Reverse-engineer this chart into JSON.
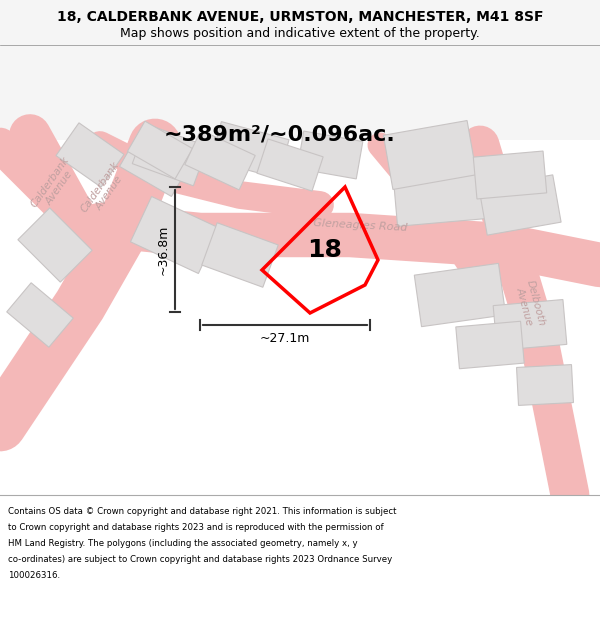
{
  "title_line1": "18, CALDERBANK AVENUE, URMSTON, MANCHESTER, M41 8SF",
  "title_line2": "Map shows position and indicative extent of the property.",
  "area_text": "~389m²/~0.096ac.",
  "width_label": "~27.1m",
  "height_label": "~36.8m",
  "number_label": "18",
  "footer_text": "Contains OS data © Crown copyright and database right 2021. This information is subject to Crown copyright and database rights 2023 and is reproduced with the permission of HM Land Registry. The polygons (including the associated geometry, namely x, y co-ordinates) are subject to Crown copyright and database rights 2023 Ordnance Survey 100026316.",
  "bg_color": "#f5f5f5",
  "map_bg": "#f0eeee",
  "road_color": "#f4b8b8",
  "building_color": "#e0dede",
  "building_edge": "#c8c4c4",
  "property_color": "#ff0000",
  "text_color": "#000000",
  "road_text_color": "#c0a0a0",
  "dim_line_color": "#333333",
  "title_sep_color": "#888888"
}
